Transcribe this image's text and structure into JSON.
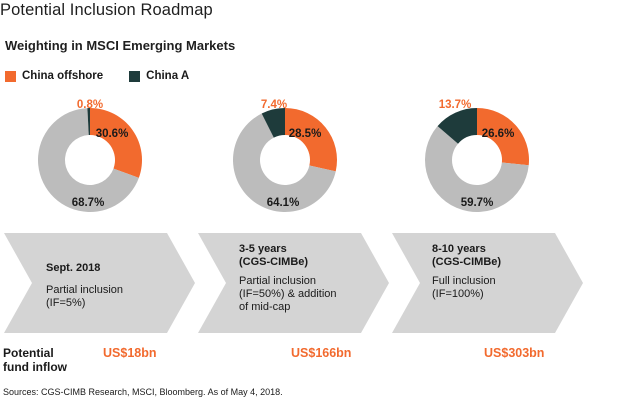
{
  "title": "Potential Inclusion Roadmap",
  "subtitle": "Weighting in MSCI Emerging Markets",
  "colors": {
    "china_offshore": "#f26a2e",
    "china_a": "#1e3b3b",
    "rest": "#bcbcbc",
    "arrow": "#d4d4d4",
    "accent_text": "#f26a2e"
  },
  "legend": [
    {
      "label": "China offshore",
      "color": "#f26a2e"
    },
    {
      "label": "China A",
      "color": "#1e3b3b"
    }
  ],
  "chart_data": [
    {
      "type": "pie",
      "variant": "donut",
      "slices": [
        {
          "name": "China offshore",
          "value": 30.6,
          "label": "30.6%"
        },
        {
          "name": "Rest",
          "value": 68.7,
          "label": "68.7%"
        },
        {
          "name": "China A",
          "value": 0.8,
          "label": "0.8%"
        }
      ]
    },
    {
      "type": "pie",
      "variant": "donut",
      "slices": [
        {
          "name": "China offshore",
          "value": 28.5,
          "label": "28.5%"
        },
        {
          "name": "Rest",
          "value": 64.1,
          "label": "64.1%"
        },
        {
          "name": "China A",
          "value": 7.4,
          "label": "7.4%"
        }
      ]
    },
    {
      "type": "pie",
      "variant": "donut",
      "slices": [
        {
          "name": "China offshore",
          "value": 26.6,
          "label": "26.6%"
        },
        {
          "name": "Rest",
          "value": 59.7,
          "label": "59.7%"
        },
        {
          "name": "China A",
          "value": 13.7,
          "label": "13.7%"
        }
      ]
    }
  ],
  "stages": [
    {
      "heading": [
        "Sept. 2018"
      ],
      "body": [
        "Partial inclusion",
        "(IF=5%)"
      ]
    },
    {
      "heading": [
        "3-5 years",
        "(CGS-CIMBe)"
      ],
      "body": [
        "Partial inclusion",
        "(IF=50%) & addition",
        "of mid-cap"
      ]
    },
    {
      "heading": [
        "8-10 years",
        "(CGS-CIMBe)"
      ],
      "body": [
        "Full inclusion",
        "(IF=100%)"
      ]
    }
  ],
  "inflow": {
    "label_line1": "Potential",
    "label_line2": "fund inflow",
    "values": [
      "US$18bn",
      "US$166bn",
      "US$303bn"
    ]
  },
  "sources": "Sources: CGS-CIMB Research, MSCI, Bloomberg. As of May 4, 2018."
}
